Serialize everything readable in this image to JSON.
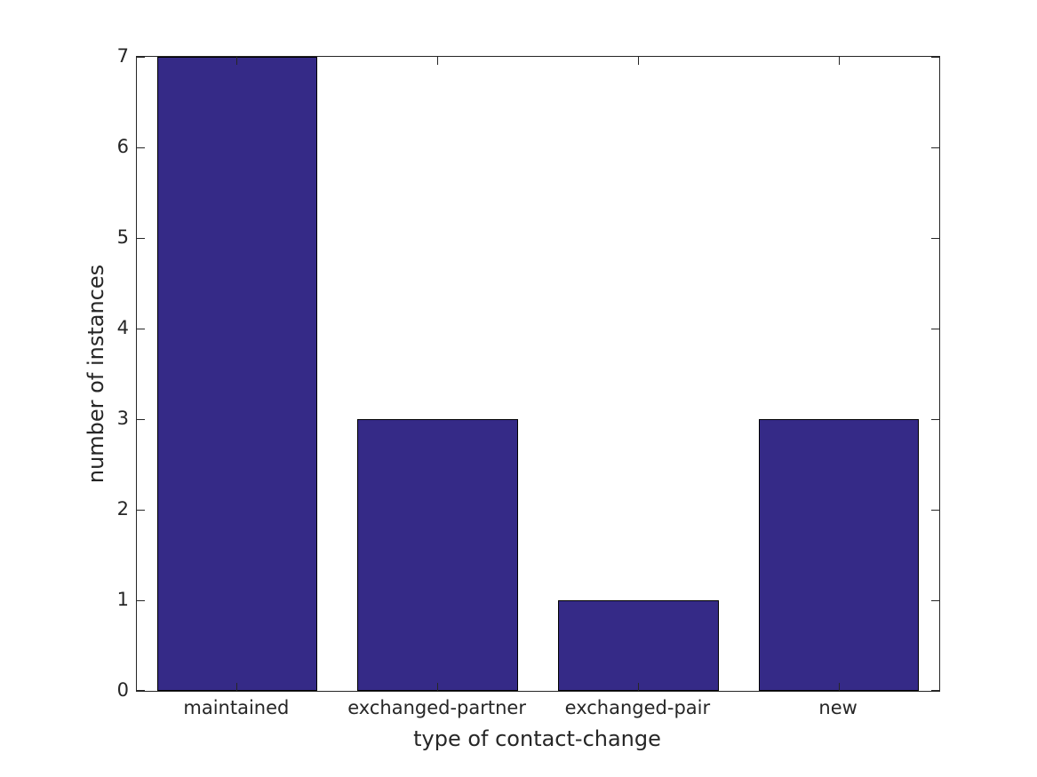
{
  "figure": {
    "background": "#ffffff"
  },
  "chart_data": {
    "type": "bar",
    "title": "",
    "xlabel": "type of contact-change",
    "ylabel": "number of instances",
    "categories": [
      "maintained",
      "exchanged-partner",
      "exchanged-pair",
      "new"
    ],
    "values": [
      7,
      3,
      1,
      3
    ],
    "ylim": [
      0,
      7
    ],
    "yticks": [
      0,
      1,
      2,
      3,
      4,
      5,
      6,
      7
    ],
    "bar_width_fraction": 0.8,
    "bar_color": "#352a87",
    "bar_edge_color": "#000000",
    "axis_color": "#262626",
    "grid": false,
    "legend": null
  }
}
